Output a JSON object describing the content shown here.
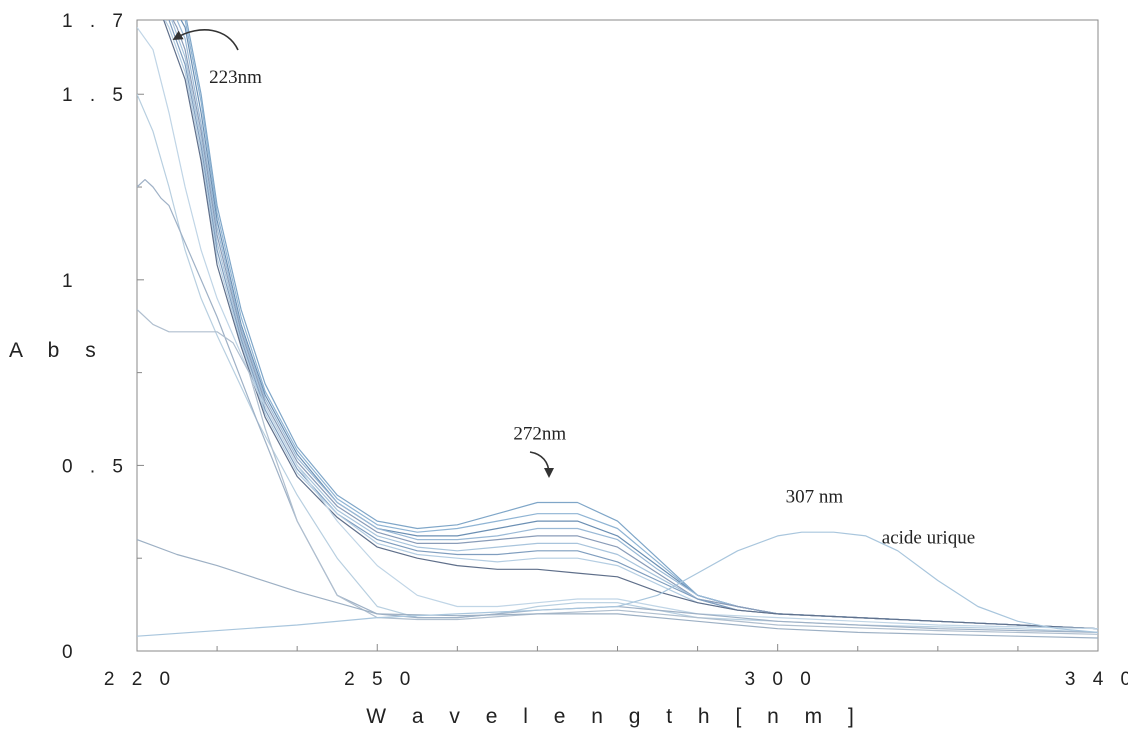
{
  "chart_data": {
    "type": "line",
    "title": "",
    "xlabel": "W a v e l e n g t h [ n m ]",
    "ylabel": "A b s",
    "xlim": [
      220,
      340
    ],
    "ylim": [
      0,
      1.7
    ],
    "x_ticks": [
      {
        "value": 220,
        "label": "2 2 0"
      },
      {
        "value": 250,
        "label": "2 5 0"
      },
      {
        "value": 300,
        "label": "3 0 0"
      },
      {
        "value": 340,
        "label": "3 4 0"
      }
    ],
    "y_ticks": [
      {
        "value": 0,
        "label": "0"
      },
      {
        "value": 0.5,
        "label": "0 . 5"
      },
      {
        "value": 1,
        "label": "1"
      },
      {
        "value": 1.5,
        "label": "1 . 5"
      },
      {
        "value": 1.7,
        "label": "1 . 7"
      }
    ],
    "grid": false,
    "annotations": [
      {
        "text": "223nm",
        "x": 229,
        "y": 1.53
      },
      {
        "text": "272nm",
        "x": 267,
        "y": 0.57
      },
      {
        "text": "307 nm",
        "x": 301,
        "y": 0.4
      },
      {
        "text": "acide urique",
        "x": 313,
        "y": 0.29
      }
    ],
    "series": [
      {
        "color": "#7fa6c8",
        "x": [
          223,
          224,
          225,
          226,
          228,
          230,
          233,
          236,
          240,
          245,
          250,
          255,
          260,
          265,
          270,
          275,
          280,
          285,
          290,
          295,
          300,
          310,
          320,
          330,
          340
        ],
        "y": [
          1.72,
          1.72,
          1.72,
          1.72,
          1.5,
          1.2,
          0.92,
          0.72,
          0.55,
          0.42,
          0.35,
          0.33,
          0.34,
          0.37,
          0.4,
          0.4,
          0.35,
          0.25,
          0.15,
          0.12,
          0.1,
          0.09,
          0.08,
          0.07,
          0.06
        ]
      },
      {
        "color": "#8fb4d4",
        "x": [
          223,
          224,
          225,
          226,
          228,
          230,
          233,
          236,
          240,
          245,
          250,
          255,
          260,
          265,
          270,
          275,
          280,
          285,
          290,
          295,
          300,
          310,
          320,
          330,
          340
        ],
        "y": [
          1.72,
          1.72,
          1.72,
          1.7,
          1.48,
          1.18,
          0.9,
          0.7,
          0.54,
          0.41,
          0.34,
          0.32,
          0.33,
          0.35,
          0.37,
          0.37,
          0.33,
          0.24,
          0.15,
          0.12,
          0.1,
          0.09,
          0.08,
          0.07,
          0.06
        ]
      },
      {
        "color": "#6b8fb3",
        "x": [
          223,
          224,
          225,
          226,
          228,
          230,
          233,
          236,
          240,
          245,
          250,
          255,
          260,
          265,
          270,
          275,
          280,
          285,
          290,
          295,
          300,
          310,
          320,
          330,
          340
        ],
        "y": [
          1.72,
          1.72,
          1.72,
          1.68,
          1.45,
          1.16,
          0.88,
          0.69,
          0.53,
          0.4,
          0.33,
          0.31,
          0.31,
          0.33,
          0.35,
          0.35,
          0.31,
          0.23,
          0.15,
          0.12,
          0.1,
          0.09,
          0.08,
          0.07,
          0.06
        ]
      },
      {
        "color": "#9ab9d6",
        "x": [
          223,
          224,
          225,
          226,
          228,
          230,
          233,
          236,
          240,
          245,
          250,
          255,
          260,
          265,
          270,
          275,
          280,
          285,
          290,
          295,
          300,
          310,
          320,
          330,
          340
        ],
        "y": [
          1.72,
          1.72,
          1.7,
          1.65,
          1.42,
          1.14,
          0.87,
          0.68,
          0.52,
          0.4,
          0.33,
          0.3,
          0.3,
          0.31,
          0.33,
          0.33,
          0.3,
          0.22,
          0.15,
          0.12,
          0.1,
          0.09,
          0.08,
          0.07,
          0.06
        ]
      },
      {
        "color": "#8a9cb8",
        "x": [
          223,
          224,
          225,
          226,
          228,
          230,
          233,
          236,
          240,
          245,
          250,
          255,
          260,
          265,
          270,
          275,
          280,
          285,
          290,
          295,
          300,
          310,
          320,
          330,
          340
        ],
        "y": [
          1.72,
          1.72,
          1.68,
          1.62,
          1.4,
          1.12,
          0.86,
          0.67,
          0.51,
          0.39,
          0.32,
          0.29,
          0.29,
          0.3,
          0.31,
          0.31,
          0.28,
          0.21,
          0.14,
          0.12,
          0.1,
          0.09,
          0.08,
          0.07,
          0.06
        ]
      },
      {
        "color": "#a8c4dc",
        "x": [
          223,
          224,
          225,
          226,
          228,
          230,
          233,
          236,
          240,
          245,
          250,
          255,
          260,
          265,
          270,
          275,
          280,
          285,
          290,
          295,
          300,
          310,
          320,
          330,
          340
        ],
        "y": [
          1.72,
          1.72,
          1.66,
          1.6,
          1.38,
          1.1,
          0.85,
          0.66,
          0.5,
          0.38,
          0.31,
          0.28,
          0.27,
          0.28,
          0.29,
          0.29,
          0.26,
          0.2,
          0.14,
          0.11,
          0.1,
          0.09,
          0.08,
          0.07,
          0.06
        ]
      },
      {
        "color": "#7f9dbe",
        "x": [
          223,
          224,
          225,
          226,
          228,
          230,
          233,
          236,
          240,
          245,
          250,
          255,
          260,
          265,
          270,
          275,
          280,
          285,
          290,
          295,
          300,
          310,
          320,
          330,
          340
        ],
        "y": [
          1.72,
          1.7,
          1.64,
          1.58,
          1.36,
          1.08,
          0.84,
          0.65,
          0.49,
          0.37,
          0.3,
          0.27,
          0.26,
          0.26,
          0.27,
          0.27,
          0.24,
          0.19,
          0.14,
          0.11,
          0.1,
          0.09,
          0.08,
          0.07,
          0.06
        ]
      },
      {
        "color": "#b4cde2",
        "x": [
          223,
          224,
          225,
          226,
          228,
          230,
          233,
          236,
          240,
          245,
          250,
          255,
          260,
          265,
          270,
          275,
          280,
          285,
          290,
          295,
          300,
          310,
          320,
          330,
          340
        ],
        "y": [
          1.72,
          1.68,
          1.62,
          1.56,
          1.34,
          1.06,
          0.83,
          0.64,
          0.48,
          0.37,
          0.29,
          0.26,
          0.25,
          0.24,
          0.25,
          0.25,
          0.23,
          0.18,
          0.13,
          0.11,
          0.1,
          0.09,
          0.08,
          0.07,
          0.06
        ]
      },
      {
        "color": "#5f6f8a",
        "x": [
          223,
          224,
          225,
          226,
          228,
          230,
          233,
          236,
          240,
          245,
          250,
          255,
          260,
          265,
          270,
          275,
          280,
          285,
          290,
          295,
          300,
          310,
          320,
          330,
          340
        ],
        "y": [
          1.72,
          1.66,
          1.6,
          1.54,
          1.32,
          1.04,
          0.82,
          0.63,
          0.47,
          0.36,
          0.28,
          0.25,
          0.23,
          0.22,
          0.22,
          0.21,
          0.2,
          0.16,
          0.13,
          0.11,
          0.1,
          0.09,
          0.08,
          0.07,
          0.06
        ]
      },
      {
        "color": "#c0d5e6",
        "x": [
          220,
          222,
          224,
          226,
          228,
          230,
          235,
          240,
          245,
          250,
          255,
          260,
          265,
          270,
          275,
          280,
          285,
          290,
          300,
          310,
          320,
          330,
          340
        ],
        "y": [
          1.68,
          1.62,
          1.45,
          1.25,
          1.08,
          0.95,
          0.7,
          0.5,
          0.35,
          0.23,
          0.15,
          0.12,
          0.12,
          0.13,
          0.14,
          0.14,
          0.12,
          0.1,
          0.09,
          0.08,
          0.07,
          0.065,
          0.06
        ]
      },
      {
        "color": "#b8cfe0",
        "x": [
          220,
          222,
          224,
          226,
          228,
          230,
          235,
          240,
          245,
          250,
          255,
          260,
          265,
          270,
          275,
          280,
          285,
          290,
          300,
          310,
          320,
          330,
          340
        ],
        "y": [
          1.5,
          1.4,
          1.25,
          1.08,
          0.95,
          0.85,
          0.62,
          0.42,
          0.25,
          0.12,
          0.09,
          0.09,
          0.1,
          0.12,
          0.13,
          0.13,
          0.11,
          0.09,
          0.08,
          0.07,
          0.065,
          0.06,
          0.05
        ]
      },
      {
        "color": "#9fb1c6",
        "x": [
          220,
          221,
          222,
          223,
          224,
          225,
          226,
          228,
          230,
          235,
          240,
          245,
          250,
          255,
          260,
          265,
          270,
          280,
          290,
          300,
          320,
          340
        ],
        "y": [
          1.25,
          1.27,
          1.25,
          1.22,
          1.2,
          1.15,
          1.1,
          1.0,
          0.9,
          0.62,
          0.35,
          0.15,
          0.1,
          0.09,
          0.09,
          0.1,
          0.11,
          0.12,
          0.1,
          0.08,
          0.06,
          0.05
        ]
      },
      {
        "color": "#b0bfcf",
        "x": [
          220,
          222,
          224,
          226,
          228,
          230,
          232,
          234,
          236,
          240,
          245,
          250,
          255,
          260,
          270,
          280,
          290,
          300,
          320,
          340
        ],
        "y": [
          0.92,
          0.88,
          0.86,
          0.86,
          0.86,
          0.86,
          0.83,
          0.75,
          0.6,
          0.35,
          0.15,
          0.09,
          0.085,
          0.085,
          0.1,
          0.11,
          0.09,
          0.07,
          0.055,
          0.045
        ]
      },
      {
        "color": "#9db0c4",
        "x": [
          220,
          225,
          230,
          240,
          250,
          260,
          270,
          280,
          290,
          300,
          310,
          320,
          330,
          340
        ],
        "y": [
          0.3,
          0.26,
          0.23,
          0.16,
          0.1,
          0.095,
          0.1,
          0.1,
          0.08,
          0.06,
          0.05,
          0.045,
          0.04,
          0.035
        ]
      },
      {
        "color": "#a9c6dd",
        "x": [
          220,
          240,
          250,
          260,
          270,
          280,
          285,
          290,
          295,
          300,
          303,
          307,
          311,
          315,
          320,
          325,
          330,
          335,
          340
        ],
        "y": [
          0.04,
          0.07,
          0.09,
          0.1,
          0.11,
          0.12,
          0.15,
          0.21,
          0.27,
          0.31,
          0.32,
          0.32,
          0.31,
          0.27,
          0.19,
          0.12,
          0.08,
          0.06,
          0.05
        ]
      }
    ]
  }
}
